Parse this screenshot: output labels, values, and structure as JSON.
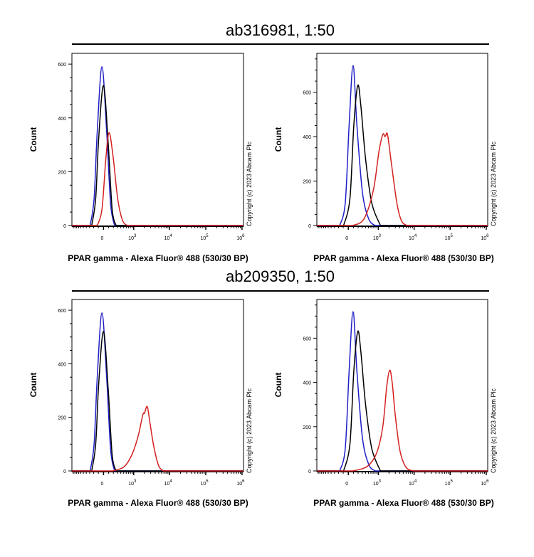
{
  "sections": [
    {
      "title": "ab316981, 1:50"
    },
    {
      "title": "ab209350, 1:50"
    }
  ],
  "chart_data": [
    {
      "type": "line",
      "section": "ab316981, 1:50",
      "xlabel": "PPAR gamma - Alexa Fluor® 488 (530/30 BP)",
      "ylabel": "Count",
      "copyright": "Copyright (c) 2023 Abcam Plc",
      "x_scale": "biexponential",
      "xlim": [
        -1100,
        1100000
      ],
      "xticks": [
        {
          "value": 0,
          "base": "0",
          "exp": ""
        },
        {
          "value": 1000,
          "base": "10",
          "exp": "3"
        },
        {
          "value": 10000,
          "base": "10",
          "exp": "4"
        },
        {
          "value": 100000,
          "base": "10",
          "exp": "5"
        },
        {
          "value": 1000000,
          "base": "10",
          "exp": "6"
        }
      ],
      "ylim": [
        0,
        640
      ],
      "yticks": [
        0,
        200,
        400,
        600
      ],
      "grid": false,
      "series": [
        {
          "color": "#1f1fc8",
          "points": [
            [
              -287,
              0
            ],
            [
              -191,
              100
            ],
            [
              -123,
              350
            ],
            [
              -30,
              590
            ],
            [
              60,
              350
            ],
            [
              140,
              80
            ],
            [
              228,
              0
            ]
          ]
        },
        {
          "color": "#000000",
          "points": [
            [
              -247,
              0
            ],
            [
              -156,
              100
            ],
            [
              -92,
              330
            ],
            [
              0,
              520
            ],
            [
              92,
              300
            ],
            [
              173,
              60
            ],
            [
              266,
              0
            ]
          ]
        },
        {
          "color": "#d42020",
          "points": [
            [
              -123,
              0
            ],
            [
              -30,
              60
            ],
            [
              45,
              250
            ],
            [
              107,
              345
            ],
            [
              191,
              260
            ],
            [
              308,
              100
            ],
            [
              453,
              20
            ],
            [
              639,
              0
            ]
          ]
        }
      ]
    },
    {
      "type": "line",
      "section": "ab316981, 1:50",
      "xlabel": "PPAR gamma - Alexa Fluor® 488 (530/30 BP)",
      "ylabel": "Count",
      "copyright": "Copyright (c) 2023 Abcam Plc",
      "x_scale": "biexponential",
      "xlim": [
        -1100,
        1100000
      ],
      "xticks": [
        {
          "value": 0,
          "base": "0",
          "exp": ""
        },
        {
          "value": 1000,
          "base": "10",
          "exp": "3"
        },
        {
          "value": 10000,
          "base": "10",
          "exp": "4"
        },
        {
          "value": 100000,
          "base": "10",
          "exp": "5"
        },
        {
          "value": 1000000,
          "base": "10",
          "exp": "6"
        }
      ],
      "ylim": [
        0,
        775
      ],
      "yticks": [
        0,
        200,
        400,
        600
      ],
      "grid": false,
      "series": [
        {
          "color": "#1f1fc8",
          "points": [
            [
              -173,
              0
            ],
            [
              -60,
              100
            ],
            [
              15,
              450
            ],
            [
              92,
              720
            ],
            [
              173,
              450
            ],
            [
              308,
              150
            ],
            [
              509,
              30
            ],
            [
              794,
              0
            ]
          ]
        },
        {
          "color": "#000000",
          "points": [
            [
              -92,
              0
            ],
            [
              30,
              120
            ],
            [
              107,
              450
            ],
            [
              191,
              630
            ],
            [
              266,
              540
            ],
            [
              401,
              300
            ],
            [
              639,
              100
            ],
            [
              1146,
              0
            ]
          ]
        },
        {
          "color": "#d42020",
          "points": [
            [
              92,
              0
            ],
            [
              353,
              30
            ],
            [
              713,
              160
            ],
            [
              1032,
              330
            ],
            [
              1337,
              410
            ],
            [
              1560,
              400
            ],
            [
              1815,
              410
            ],
            [
              2335,
              280
            ],
            [
              3330,
              100
            ],
            [
              4491,
              20
            ],
            [
              6375,
              0
            ]
          ]
        }
      ]
    },
    {
      "type": "line",
      "section": "ab209350, 1:50",
      "xlabel": "PPAR gamma - Alexa Fluor® 488 (530/30 BP)",
      "ylabel": "Count",
      "copyright": "Copyright (c) 2023 Abcam Plc",
      "x_scale": "biexponential",
      "xlim": [
        -1100,
        1100000
      ],
      "xticks": [
        {
          "value": 0,
          "base": "0",
          "exp": ""
        },
        {
          "value": 1000,
          "base": "10",
          "exp": "3"
        },
        {
          "value": 10000,
          "base": "10",
          "exp": "4"
        },
        {
          "value": 100000,
          "base": "10",
          "exp": "5"
        },
        {
          "value": 1000000,
          "base": "10",
          "exp": "6"
        }
      ],
      "ylim": [
        0,
        640
      ],
      "yticks": [
        0,
        200,
        400,
        600
      ],
      "grid": false,
      "series": [
        {
          "color": "#1f1fc8",
          "points": [
            [
              -287,
              0
            ],
            [
              -191,
              100
            ],
            [
              -123,
              350
            ],
            [
              -30,
              590
            ],
            [
              60,
              350
            ],
            [
              140,
              80
            ],
            [
              228,
              0
            ]
          ]
        },
        {
          "color": "#000000",
          "points": [
            [
              -247,
              0
            ],
            [
              -156,
              100
            ],
            [
              -92,
              330
            ],
            [
              0,
              520
            ],
            [
              92,
              300
            ],
            [
              173,
              60
            ],
            [
              266,
              0
            ]
          ]
        },
        {
          "color": "#d42020",
          "points": [
            [
              191,
              0
            ],
            [
              509,
              15
            ],
            [
              883,
              60
            ],
            [
              1337,
              130
            ],
            [
              1815,
              210
            ],
            [
              2009,
              215
            ],
            [
              2409,
              240
            ],
            [
              2859,
              180
            ],
            [
              3675,
              90
            ],
            [
              4962,
              20
            ],
            [
              6702,
              0
            ]
          ]
        }
      ]
    },
    {
      "type": "line",
      "section": "ab209350, 1:50",
      "xlabel": "PPAR gamma - Alexa Fluor® 488 (530/30 BP)",
      "ylabel": "Count",
      "copyright": "Copyright (c) 2023 Abcam Plc",
      "x_scale": "biexponential",
      "xlim": [
        -1100,
        1100000
      ],
      "xticks": [
        {
          "value": 0,
          "base": "0",
          "exp": ""
        },
        {
          "value": 1000,
          "base": "10",
          "exp": "3"
        },
        {
          "value": 10000,
          "base": "10",
          "exp": "4"
        },
        {
          "value": 100000,
          "base": "10",
          "exp": "5"
        },
        {
          "value": 1000000,
          "base": "10",
          "exp": "6"
        }
      ],
      "ylim": [
        0,
        775
      ],
      "yticks": [
        0,
        200,
        400,
        600
      ],
      "grid": false,
      "series": [
        {
          "color": "#1f1fc8",
          "points": [
            [
              -173,
              0
            ],
            [
              -60,
              100
            ],
            [
              15,
              450
            ],
            [
              92,
              720
            ],
            [
              173,
              450
            ],
            [
              308,
              150
            ],
            [
              509,
              30
            ],
            [
              794,
              0
            ]
          ]
        },
        {
          "color": "#000000",
          "points": [
            [
              -92,
              0
            ],
            [
              30,
              120
            ],
            [
              107,
              450
            ],
            [
              191,
              630
            ],
            [
              266,
              540
            ],
            [
              401,
              300
            ],
            [
              639,
              100
            ],
            [
              1146,
              0
            ]
          ]
        },
        {
          "color": "#d42020",
          "points": [
            [
              92,
              0
            ],
            [
              453,
              20
            ],
            [
              883,
              80
            ],
            [
              1337,
              200
            ],
            [
              1725,
              380
            ],
            [
              2091,
              455
            ],
            [
              2458,
              400
            ],
            [
              3006,
              250
            ],
            [
              4065,
              90
            ],
            [
              6063,
              15
            ],
            [
              10002,
              0
            ]
          ]
        }
      ]
    }
  ]
}
